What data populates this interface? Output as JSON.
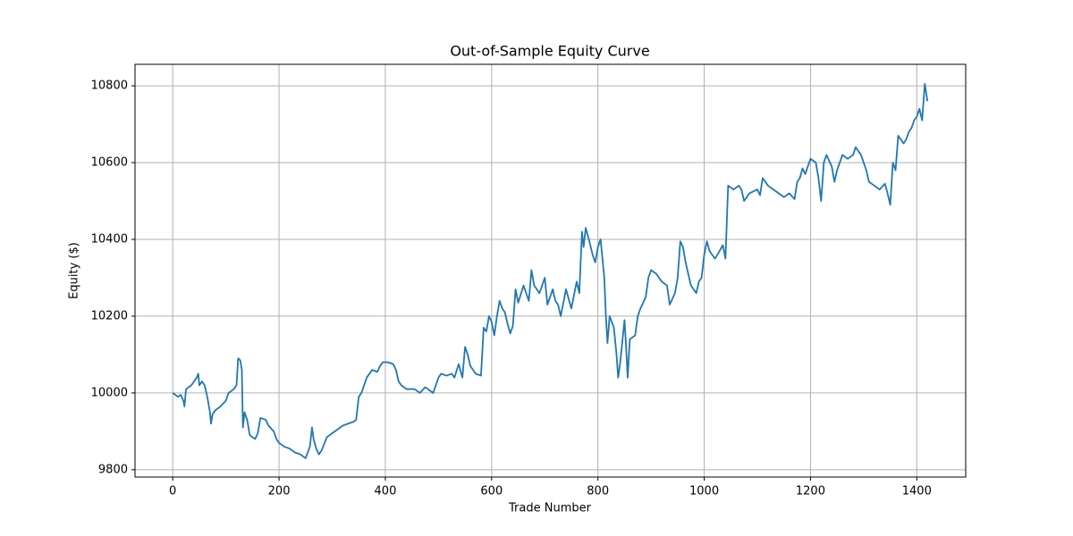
{
  "chart_data": {
    "type": "line",
    "title": "Out-of-Sample Equity Curve",
    "x_label": "Trade Number",
    "y_label": "Equity ($)",
    "color": "#1f77b4",
    "grid": true,
    "xlim": [
      -71,
      1492
    ],
    "ylim": [
      9781,
      10856
    ],
    "xticks": [
      0,
      200,
      400,
      600,
      800,
      1000,
      1200,
      1400
    ],
    "yticks": [
      9800,
      10000,
      10200,
      10400,
      10600,
      10800
    ],
    "x": [
      0,
      10,
      15,
      20,
      22,
      25,
      35,
      40,
      45,
      48,
      50,
      55,
      60,
      65,
      70,
      72,
      75,
      80,
      90,
      100,
      105,
      115,
      120,
      123,
      127,
      130,
      132,
      135,
      140,
      145,
      155,
      160,
      165,
      175,
      180,
      190,
      195,
      200,
      210,
      220,
      230,
      240,
      250,
      258,
      262,
      265,
      270,
      275,
      280,
      290,
      300,
      310,
      320,
      330,
      340,
      345,
      350,
      355,
      360,
      365,
      375,
      385,
      390,
      395,
      405,
      415,
      420,
      425,
      430,
      440,
      455,
      465,
      475,
      485,
      490,
      500,
      505,
      515,
      525,
      530,
      538,
      545,
      550,
      555,
      560,
      570,
      580,
      585,
      590,
      595,
      600,
      605,
      610,
      615,
      620,
      625,
      630,
      635,
      640,
      645,
      650,
      660,
      670,
      675,
      680,
      690,
      700,
      705,
      715,
      720,
      725,
      730,
      740,
      750,
      760,
      765,
      770,
      773,
      777,
      783,
      790,
      795,
      800,
      805,
      812,
      815,
      818,
      822,
      830,
      835,
      838,
      842,
      850,
      853,
      856,
      860,
      870,
      875,
      880,
      890,
      895,
      900,
      910,
      920,
      930,
      935,
      945,
      950,
      955,
      960,
      965,
      975,
      985,
      990,
      995,
      1000,
      1005,
      1010,
      1020,
      1025,
      1035,
      1040,
      1045,
      1055,
      1065,
      1070,
      1075,
      1085,
      1100,
      1105,
      1110,
      1120,
      1130,
      1140,
      1150,
      1160,
      1170,
      1175,
      1180,
      1185,
      1190,
      1200,
      1210,
      1215,
      1220,
      1225,
      1230,
      1240,
      1245,
      1250,
      1255,
      1260,
      1270,
      1280,
      1285,
      1290,
      1295,
      1300,
      1305,
      1310,
      1320,
      1330,
      1340,
      1345,
      1350,
      1355,
      1360,
      1365,
      1375,
      1380,
      1385,
      1390,
      1395,
      1400,
      1405,
      1410,
      1415,
      1420
    ],
    "values": [
      10000,
      9990,
      9995,
      9980,
      9965,
      10010,
      10020,
      10030,
      10040,
      10050,
      10020,
      10030,
      10020,
      9990,
      9950,
      9920,
      9945,
      9955,
      9965,
      9980,
      10000,
      10010,
      10020,
      10090,
      10085,
      10060,
      9910,
      9950,
      9930,
      9890,
      9880,
      9895,
      9935,
      9930,
      9915,
      9900,
      9880,
      9870,
      9860,
      9855,
      9845,
      9840,
      9830,
      9860,
      9910,
      9880,
      9855,
      9840,
      9850,
      9885,
      9895,
      9905,
      9915,
      9920,
      9925,
      9930,
      9990,
      10000,
      10020,
      10040,
      10060,
      10055,
      10070,
      10080,
      10080,
      10075,
      10060,
      10030,
      10020,
      10010,
      10010,
      10000,
      10015,
      10005,
      10000,
      10040,
      10050,
      10045,
      10050,
      10040,
      10075,
      10040,
      10120,
      10100,
      10070,
      10050,
      10045,
      10170,
      10160,
      10200,
      10185,
      10150,
      10200,
      10240,
      10220,
      10210,
      10180,
      10155,
      10175,
      10270,
      10235,
      10280,
      10240,
      10320,
      10280,
      10260,
      10300,
      10230,
      10270,
      10240,
      10230,
      10200,
      10270,
      10220,
      10290,
      10260,
      10420,
      10380,
      10430,
      10400,
      10360,
      10340,
      10380,
      10400,
      10300,
      10200,
      10130,
      10200,
      10170,
      10100,
      10040,
      10080,
      10190,
      10120,
      10040,
      10140,
      10150,
      10200,
      10220,
      10250,
      10300,
      10320,
      10310,
      10290,
      10280,
      10230,
      10260,
      10300,
      10395,
      10380,
      10340,
      10280,
      10260,
      10290,
      10300,
      10360,
      10395,
      10370,
      10350,
      10360,
      10385,
      10350,
      10540,
      10530,
      10540,
      10530,
      10500,
      10520,
      10530,
      10515,
      10560,
      10540,
      10530,
      10520,
      10510,
      10520,
      10505,
      10550,
      10560,
      10585,
      10570,
      10610,
      10600,
      10560,
      10500,
      10600,
      10620,
      10590,
      10550,
      10580,
      10600,
      10620,
      10610,
      10620,
      10640,
      10630,
      10620,
      10600,
      10580,
      10550,
      10540,
      10530,
      10545,
      10520,
      10490,
      10600,
      10580,
      10670,
      10650,
      10660,
      10680,
      10690,
      10710,
      10720,
      10740,
      10710,
      10805,
      10760
    ]
  }
}
